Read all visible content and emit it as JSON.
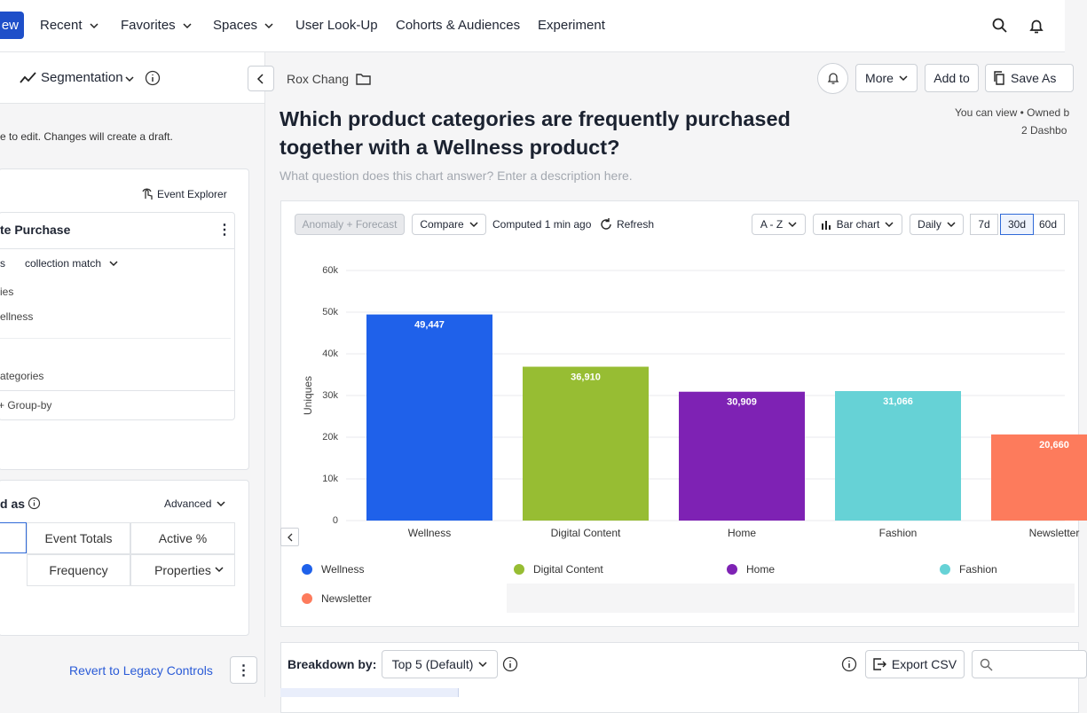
{
  "nav": {
    "new_button": "ew",
    "items": [
      "Recent",
      "Favorites",
      "Spaces",
      "User Look-Up",
      "Cohorts & Audiences",
      "Experiment"
    ]
  },
  "sidebar": {
    "chart_type": "Segmentation",
    "draft_note": "e to edit. Changes will create a draft.",
    "event_explorer": "Event Explorer",
    "event_name": "te Purchase",
    "filter_prop": "s",
    "filter_op": "collection match",
    "filter_a": "ies",
    "filter_b": "ellness",
    "group_prop": "ategories",
    "group_by": "+ Group-by",
    "measured_as": "d as",
    "advanced": "Advanced",
    "metrics": [
      "Event Totals",
      "Active %",
      "Frequency",
      "Properties"
    ],
    "revert": "Revert to Legacy Controls"
  },
  "header": {
    "owner": "Rox Chang",
    "more": "More",
    "add_to": "Add to",
    "save_as": "Save As",
    "title": "Which product categories are frequently purchased together with a Wellness product?",
    "permissions": "You can view • Owned b",
    "dashboards": "2 Dashbo",
    "description": "What question does this chart answer? Enter a description here."
  },
  "toolbar": {
    "anomaly": "Anomaly + Forecast",
    "compare": "Compare",
    "computed": "Computed 1 min ago",
    "refresh": "Refresh",
    "sort": "A - Z",
    "chart_kind": "Bar chart",
    "interval": "Daily",
    "ranges": [
      "7d",
      "30d",
      "60d"
    ]
  },
  "chart_data": {
    "type": "bar",
    "y_label": "Uniques",
    "categories": [
      "Wellness",
      "Digital Content",
      "Home",
      "Fashion",
      "Newsletter"
    ],
    "values": [
      49447,
      36910,
      30909,
      31066,
      20660
    ],
    "value_labels": [
      "49,447",
      "36,910",
      "30,909",
      "31,066",
      "20,660"
    ],
    "colors": [
      "#1f61ea",
      "#97bd33",
      "#7e22b4",
      "#66d2d6",
      "#fd7b5c"
    ],
    "ylim": [
      0,
      60000
    ],
    "yticks": [
      0,
      {
        "value": 10000,
        "label": "10k"
      },
      {
        "value": 20000,
        "label": "20k"
      },
      {
        "value": 30000,
        "label": "30k"
      },
      {
        "value": 40000,
        "label": "40k"
      },
      {
        "value": 50000,
        "label": "50k"
      },
      {
        "value": 60000,
        "label": "60k"
      }
    ],
    "grid": true
  },
  "breakdown": {
    "label": "Breakdown by:",
    "selection": "Top 5 (Default)",
    "export": "Export CSV"
  }
}
